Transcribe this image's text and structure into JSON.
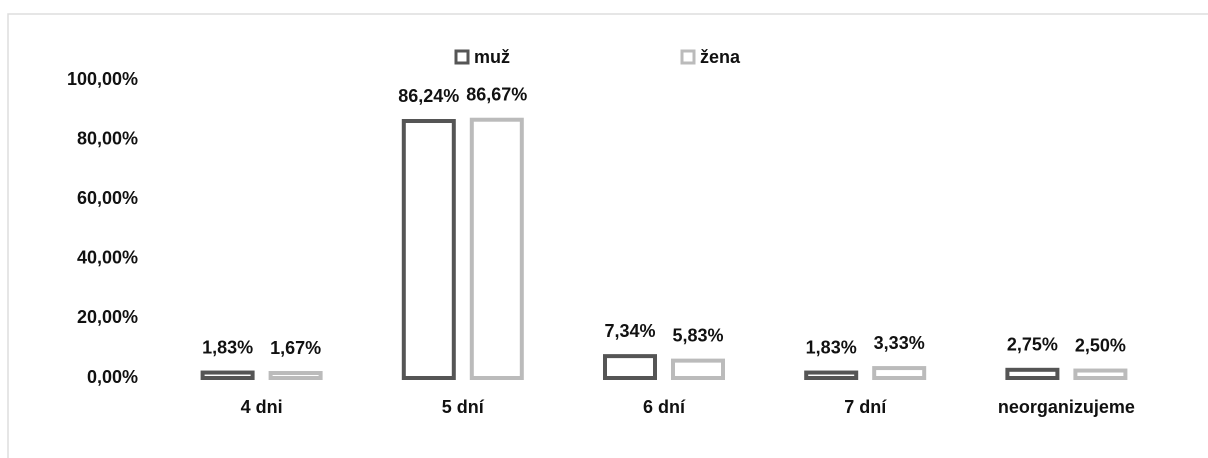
{
  "chart_data": {
    "type": "bar",
    "categories": [
      "4 dni",
      "5 dní",
      "6 dní",
      "7 dní",
      "neorganizujeme"
    ],
    "series": [
      {
        "name": "muž",
        "color": "#555555",
        "values": [
          1.83,
          86.24,
          7.34,
          1.83,
          2.75
        ],
        "value_labels": [
          "1,83%",
          "86,24%",
          "7,34%",
          "1,83%",
          "2,75%"
        ]
      },
      {
        "name": "žena",
        "color": "#bbbbbb",
        "values": [
          1.67,
          86.67,
          5.83,
          3.33,
          2.5
        ],
        "value_labels": [
          "1,67%",
          "86,67%",
          "5,83%",
          "3,33%",
          "2,50%"
        ]
      }
    ],
    "ylim": [
      0,
      100
    ],
    "yticks": [
      {
        "value": 0,
        "label": "0,00%"
      },
      {
        "value": 20,
        "label": "20,00%"
      },
      {
        "value": 40,
        "label": "40,00%"
      },
      {
        "value": 60,
        "label": "60,00%"
      },
      {
        "value": 80,
        "label": "80,00%"
      },
      {
        "value": 100,
        "label": "100,00%"
      }
    ],
    "grid": false,
    "legend": "top"
  }
}
